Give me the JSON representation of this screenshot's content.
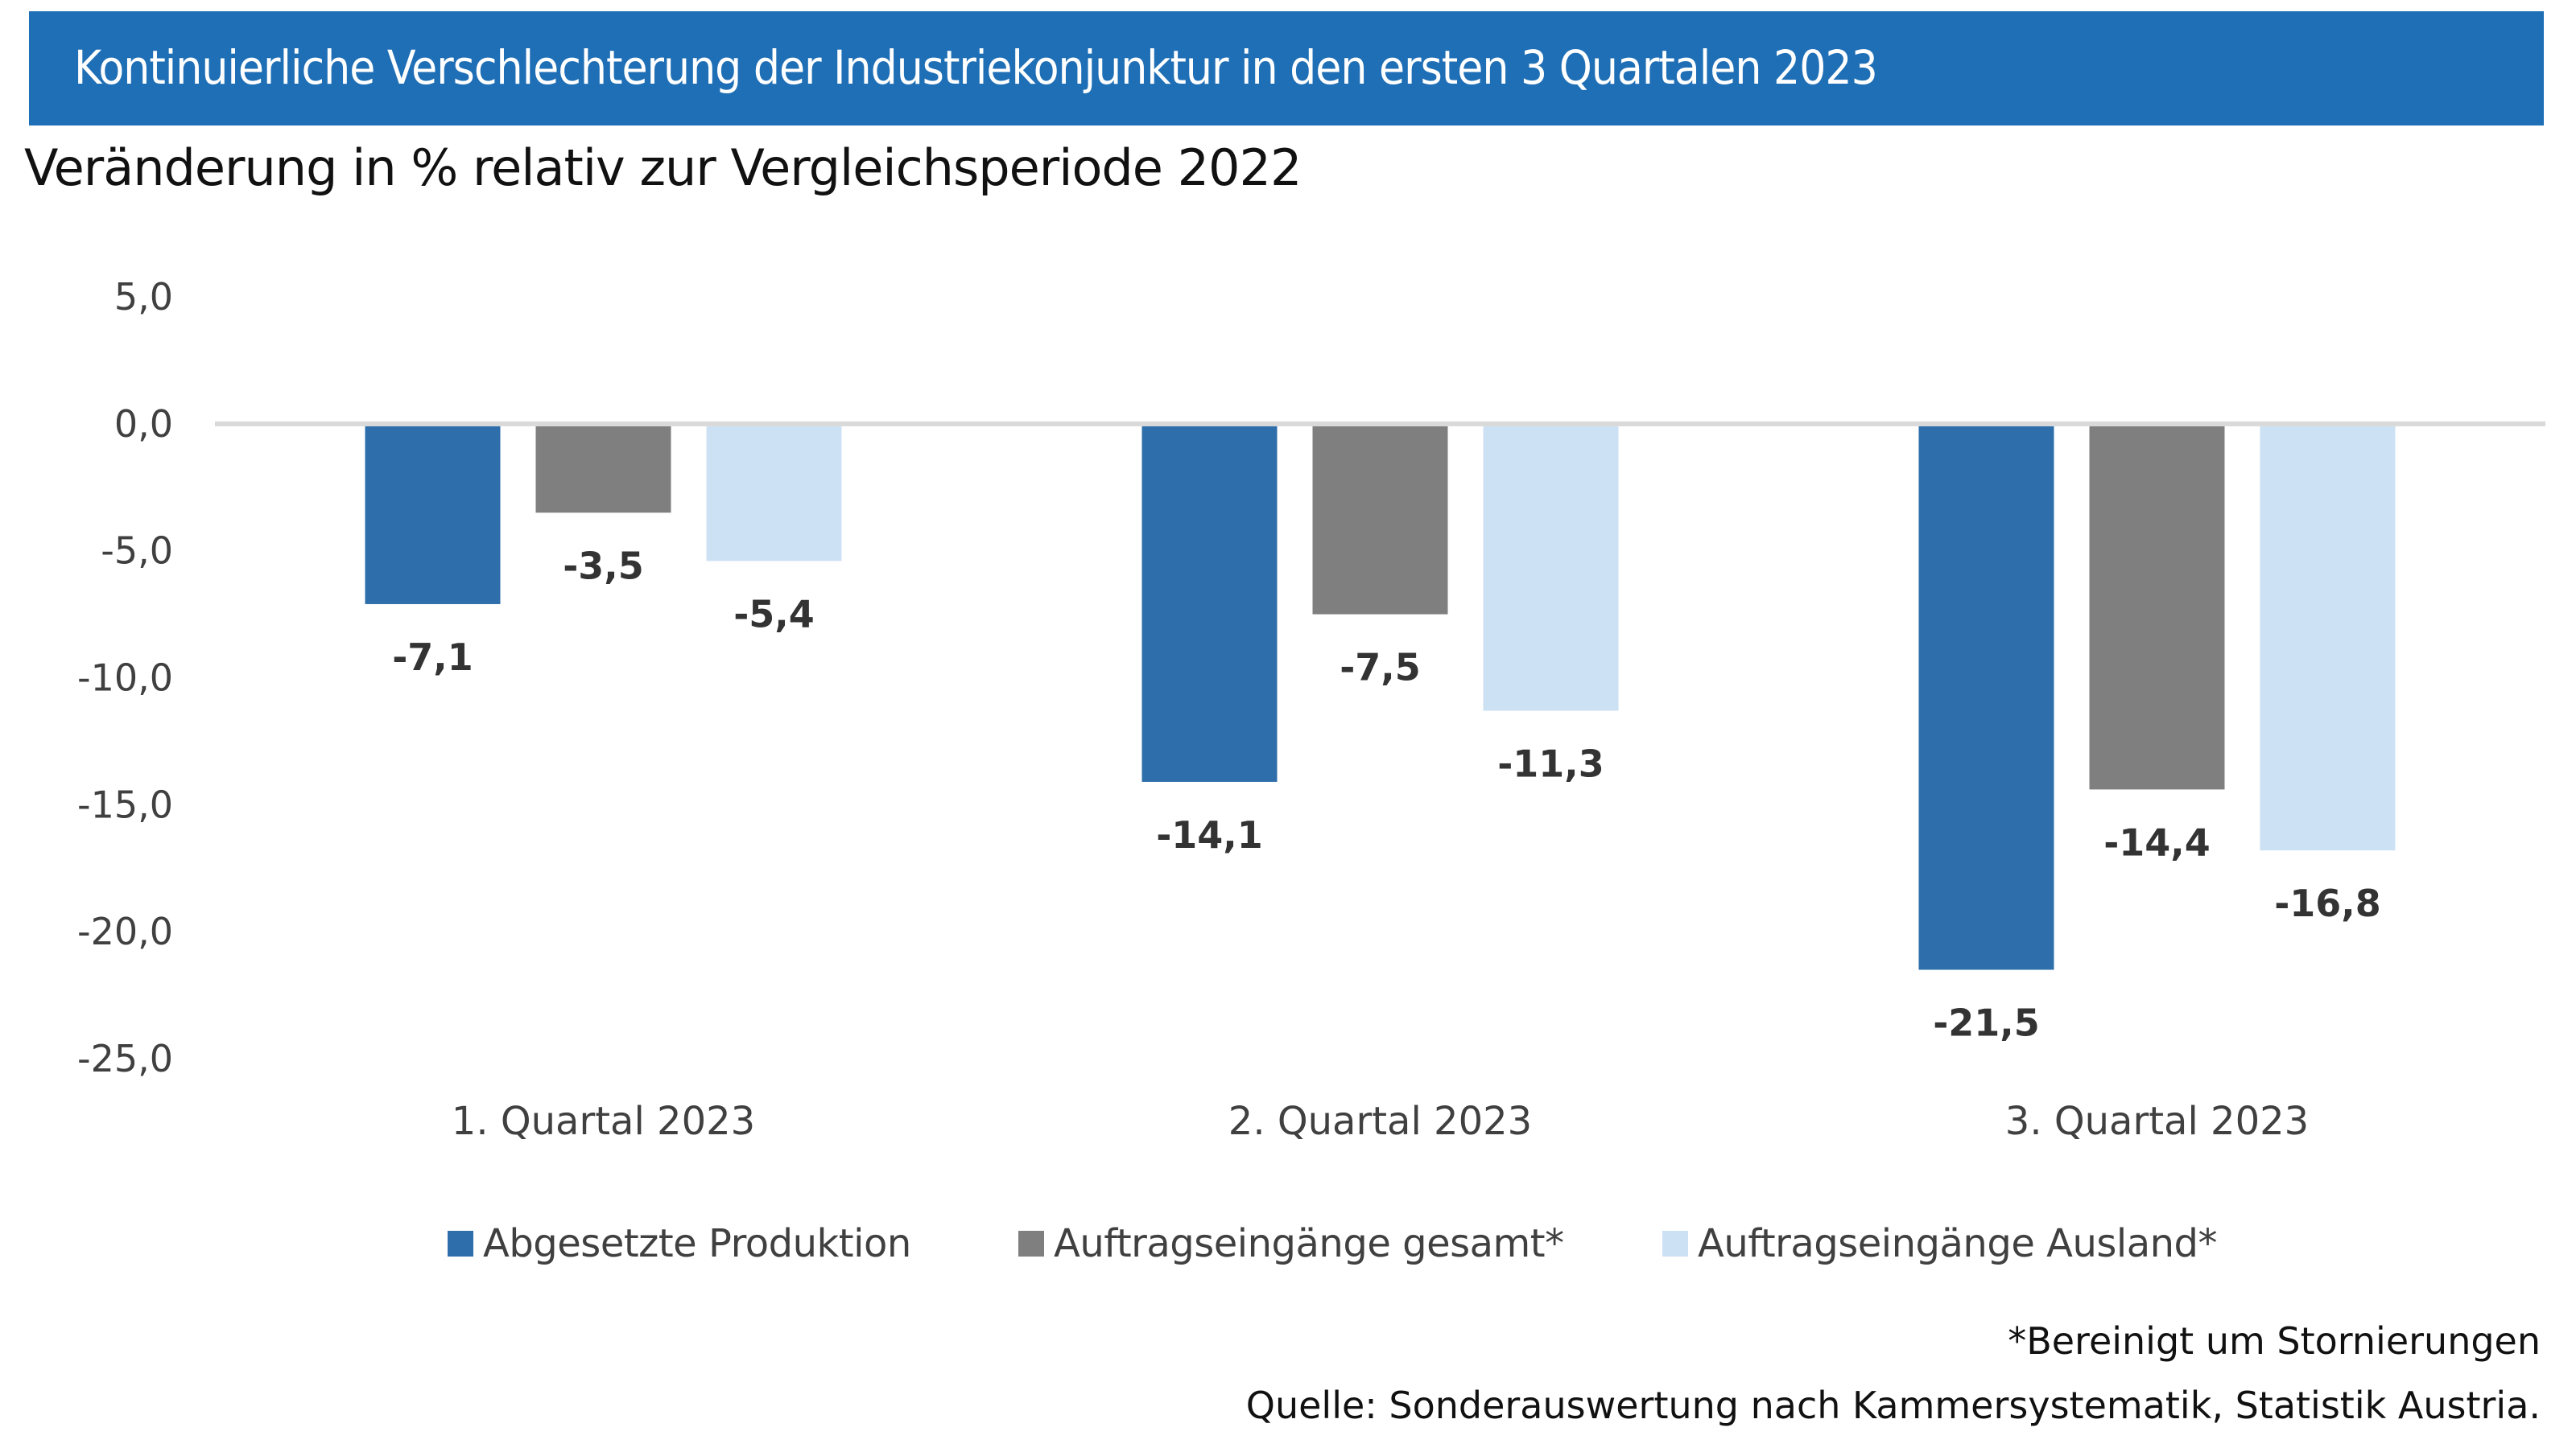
{
  "header": {
    "title": "Kontinuierliche Verschlechterung der Industriekonjunktur in den ersten 3 Quartalen 2023",
    "subtitle": "Veränderung in % relativ zur Vergleichsperiode 2022"
  },
  "colors": {
    "banner": "#1f6fb6",
    "zero_line": "#d9d9d9"
  },
  "chart_data": {
    "type": "bar",
    "title": "Kontinuierliche Verschlechterung der Industriekonjunktur in den ersten 3 Quartalen 2023",
    "subtitle": "Veränderung in % relativ zur Vergleichsperiode 2022",
    "xlabel": "",
    "ylabel": "",
    "categories": [
      "1. Quartal 2023",
      "2. Quartal 2023",
      "3. Quartal 2023"
    ],
    "series": [
      {
        "name": "Abgesetzte Produktion",
        "color": "#2e6fab",
        "values": [
          -7.1,
          -14.1,
          -21.5
        ],
        "labels": [
          "-7,1",
          "-14,1",
          "-21,5"
        ]
      },
      {
        "name": "Auftragseingänge gesamt*",
        "color": "#7f7f7f",
        "values": [
          -3.5,
          -7.5,
          -14.4
        ],
        "labels": [
          "-3,5",
          "-7,5",
          "-14,4"
        ]
      },
      {
        "name": "Auftragseingänge Ausland*",
        "color": "#cde1f5",
        "values": [
          -5.4,
          -11.3,
          -16.8
        ],
        "labels": [
          "-5,4",
          "-11,3",
          "-16,8"
        ]
      }
    ],
    "ylim": [
      -25,
      5
    ],
    "yticks": [
      5,
      0,
      -5,
      -10,
      -15,
      -20,
      -25
    ],
    "ytick_labels": [
      "5,0",
      "0,0",
      "-5,0",
      "-10,0",
      "-15,0",
      "-20,0",
      "-25,0"
    ],
    "grid": false,
    "legend_position": "bottom-center"
  },
  "footer": {
    "footnote": "*Bereinigt um Stornierungen",
    "source": "Quelle: Sonderauswertung nach Kammersystematik, Statistik Austria."
  }
}
